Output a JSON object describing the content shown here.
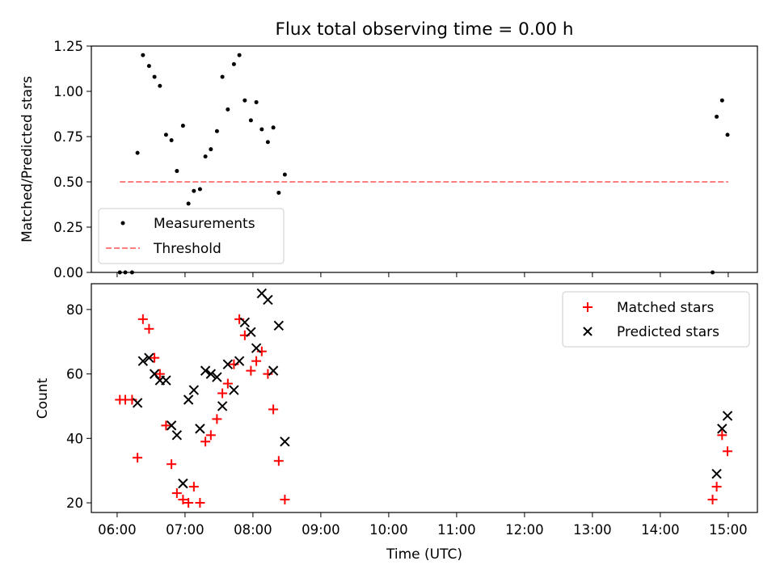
{
  "chart_data": [
    {
      "type": "scatter",
      "title": "Flux total observing time = 0.00 h",
      "xlabel": "",
      "ylabel": "Matched/Predicted stars",
      "ylim": [
        0,
        1.25
      ],
      "yticks": [
        "0.00",
        "0.25",
        "0.50",
        "0.75",
        "1.00",
        "1.25"
      ],
      "legend_position": "lower-left",
      "series": [
        {
          "name": "Measurements",
          "color": "#000000",
          "marker": "dot",
          "points": [
            [
              6.04,
              0.0
            ],
            [
              6.12,
              0.0
            ],
            [
              6.22,
              0.0
            ],
            [
              6.3,
              0.66
            ],
            [
              6.38,
              1.2
            ],
            [
              6.47,
              1.14
            ],
            [
              6.55,
              1.08
            ],
            [
              6.63,
              1.03
            ],
            [
              6.72,
              0.76
            ],
            [
              6.8,
              0.73
            ],
            [
              6.88,
              0.56
            ],
            [
              6.97,
              0.81
            ],
            [
              7.05,
              0.38
            ],
            [
              7.13,
              0.45
            ],
            [
              7.22,
              0.46
            ],
            [
              7.3,
              0.64
            ],
            [
              7.38,
              0.68
            ],
            [
              7.47,
              0.78
            ],
            [
              7.55,
              1.08
            ],
            [
              7.63,
              0.9
            ],
            [
              7.72,
              1.15
            ],
            [
              7.8,
              1.2
            ],
            [
              7.88,
              0.95
            ],
            [
              7.97,
              0.84
            ],
            [
              8.05,
              0.94
            ],
            [
              8.13,
              0.79
            ],
            [
              8.22,
              0.72
            ],
            [
              8.3,
              0.8
            ],
            [
              8.38,
              0.44
            ],
            [
              8.47,
              0.54
            ],
            [
              14.77,
              0.0
            ],
            [
              14.83,
              0.86
            ],
            [
              14.91,
              0.95
            ],
            [
              14.99,
              0.76
            ]
          ]
        },
        {
          "name": "Threshold",
          "color": "#ff7f7f",
          "style": "dashed",
          "points": [
            [
              6.04,
              0.5
            ],
            [
              15.0,
              0.5
            ]
          ]
        }
      ]
    },
    {
      "type": "scatter",
      "title": "",
      "xlabel": "Time (UTC)",
      "ylabel": "Count",
      "ylim": [
        17,
        88
      ],
      "yticks": [
        "20",
        "40",
        "60",
        "80"
      ],
      "xticks": [
        "06:00",
        "07:00",
        "08:00",
        "09:00",
        "10:00",
        "11:00",
        "12:00",
        "13:00",
        "14:00",
        "15:00"
      ],
      "xlim": [
        5.62,
        15.43
      ],
      "legend_position": "upper-right",
      "series": [
        {
          "name": "Matched stars",
          "color": "#ff0000",
          "marker": "plus",
          "points": [
            [
              6.04,
              52
            ],
            [
              6.12,
              52
            ],
            [
              6.22,
              52
            ],
            [
              6.3,
              34
            ],
            [
              6.38,
              77
            ],
            [
              6.47,
              74
            ],
            [
              6.55,
              65
            ],
            [
              6.63,
              60
            ],
            [
              6.72,
              44
            ],
            [
              6.8,
              32
            ],
            [
              6.88,
              23
            ],
            [
              6.97,
              21
            ],
            [
              7.05,
              20
            ],
            [
              7.13,
              25
            ],
            [
              7.22,
              20
            ],
            [
              7.3,
              39
            ],
            [
              7.38,
              41
            ],
            [
              7.47,
              46
            ],
            [
              7.55,
              54
            ],
            [
              7.63,
              57
            ],
            [
              7.72,
              63
            ],
            [
              7.8,
              77
            ],
            [
              7.88,
              72
            ],
            [
              7.97,
              61
            ],
            [
              8.05,
              64
            ],
            [
              8.13,
              67
            ],
            [
              8.22,
              60
            ],
            [
              8.3,
              49
            ],
            [
              8.38,
              33
            ],
            [
              8.47,
              21
            ],
            [
              14.77,
              21
            ],
            [
              14.83,
              25
            ],
            [
              14.91,
              41
            ],
            [
              14.99,
              36
            ]
          ]
        },
        {
          "name": "Predicted stars",
          "color": "#000000",
          "marker": "x",
          "points": [
            [
              6.3,
              51
            ],
            [
              6.38,
              64
            ],
            [
              6.47,
              65
            ],
            [
              6.55,
              60
            ],
            [
              6.63,
              58
            ],
            [
              6.72,
              58
            ],
            [
              6.8,
              44
            ],
            [
              6.88,
              41
            ],
            [
              6.97,
              26
            ],
            [
              7.05,
              52
            ],
            [
              7.13,
              55
            ],
            [
              7.22,
              43
            ],
            [
              7.3,
              61
            ],
            [
              7.38,
              60
            ],
            [
              7.47,
              59
            ],
            [
              7.55,
              50
            ],
            [
              7.63,
              63
            ],
            [
              7.72,
              55
            ],
            [
              7.8,
              64
            ],
            [
              7.88,
              76
            ],
            [
              7.97,
              73
            ],
            [
              8.05,
              68
            ],
            [
              8.13,
              85
            ],
            [
              8.22,
              83
            ],
            [
              8.3,
              61
            ],
            [
              8.38,
              75
            ],
            [
              8.47,
              39
            ],
            [
              14.83,
              29
            ],
            [
              14.91,
              43
            ],
            [
              14.99,
              47
            ]
          ]
        }
      ]
    }
  ]
}
